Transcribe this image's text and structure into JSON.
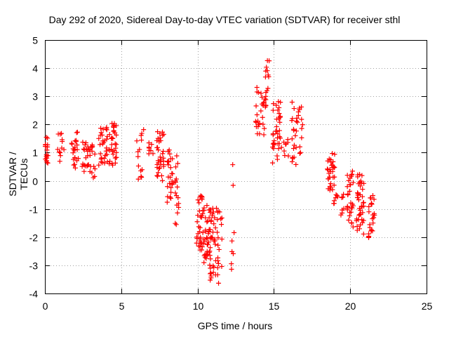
{
  "chart_data": {
    "type": "scatter",
    "title": "Day 292 of 2020, Sidereal Day-to-day VTEC variation (SDTVAR) for receiver sthl",
    "xlabel": "GPS time / hours",
    "ylabel": "SDTVAR / TECUs",
    "xlim": [
      0,
      25
    ],
    "ylim": [
      -4,
      5
    ],
    "xticks": [
      0,
      5,
      10,
      15,
      20,
      25
    ],
    "yticks": [
      -4,
      -3,
      -2,
      -1,
      0,
      1,
      2,
      3,
      4,
      5
    ],
    "grid": true,
    "marker": "plus",
    "color": "#ff0000",
    "clusters": [
      {
        "x": [
          0.0,
          0.2
        ],
        "y": [
          0.6,
          1.75
        ],
        "n": 18
      },
      {
        "x": [
          0.8,
          1.3
        ],
        "y": [
          0.3,
          1.7
        ],
        "n": 12
      },
      {
        "x": [
          1.7,
          2.2
        ],
        "y": [
          0.35,
          1.8
        ],
        "n": 22
      },
      {
        "x": [
          2.4,
          3.3
        ],
        "y": [
          0.1,
          1.55
        ],
        "n": 34
      },
      {
        "x": [
          3.5,
          4.3
        ],
        "y": [
          0.5,
          1.9
        ],
        "n": 34
      },
      {
        "x": [
          4.3,
          4.7
        ],
        "y": [
          0.5,
          2.05
        ],
        "n": 28
      },
      {
        "x": [
          6.0,
          6.5
        ],
        "y": [
          0.05,
          1.9
        ],
        "n": 14
      },
      {
        "x": [
          6.8,
          7.1
        ],
        "y": [
          0.95,
          1.4
        ],
        "n": 8
      },
      {
        "x": [
          7.3,
          7.8
        ],
        "y": [
          0.0,
          1.75
        ],
        "n": 34
      },
      {
        "x": [
          8.0,
          8.4
        ],
        "y": [
          -0.8,
          1.1
        ],
        "n": 26
      },
      {
        "x": [
          8.5,
          8.8
        ],
        "y": [
          -1.6,
          0.9
        ],
        "n": 16
      },
      {
        "x": [
          9.9,
          10.3
        ],
        "y": [
          -2.7,
          -0.5
        ],
        "n": 30
      },
      {
        "x": [
          10.3,
          10.9
        ],
        "y": [
          -3.0,
          -0.8
        ],
        "n": 40
      },
      {
        "x": [
          10.7,
          11.6
        ],
        "y": [
          -3.65,
          -0.95
        ],
        "n": 55
      },
      {
        "x": [
          12.2,
          12.4
        ],
        "y": [
          -3.3,
          0.7
        ],
        "n": 8
      },
      {
        "x": [
          13.8,
          14.5
        ],
        "y": [
          1.3,
          3.35
        ],
        "n": 32
      },
      {
        "x": [
          14.4,
          14.7
        ],
        "y": [
          3.1,
          4.3
        ],
        "n": 10
      },
      {
        "x": [
          14.9,
          15.5
        ],
        "y": [
          0.6,
          2.95
        ],
        "n": 36
      },
      {
        "x": [
          15.6,
          16.1
        ],
        "y": [
          0.8,
          1.55
        ],
        "n": 8
      },
      {
        "x": [
          16.1,
          16.9
        ],
        "y": [
          0.55,
          2.85
        ],
        "n": 32
      },
      {
        "x": [
          18.5,
          19.0
        ],
        "y": [
          -0.35,
          1.0
        ],
        "n": 32
      },
      {
        "x": [
          18.9,
          19.6
        ],
        "y": [
          -1.25,
          -0.3
        ],
        "n": 14
      },
      {
        "x": [
          19.8,
          20.2
        ],
        "y": [
          -1.65,
          0.55
        ],
        "n": 30
      },
      {
        "x": [
          20.4,
          20.9
        ],
        "y": [
          -1.9,
          0.25
        ],
        "n": 42
      },
      {
        "x": [
          21.2,
          21.6
        ],
        "y": [
          -2.05,
          -0.5
        ],
        "n": 24
      }
    ]
  }
}
